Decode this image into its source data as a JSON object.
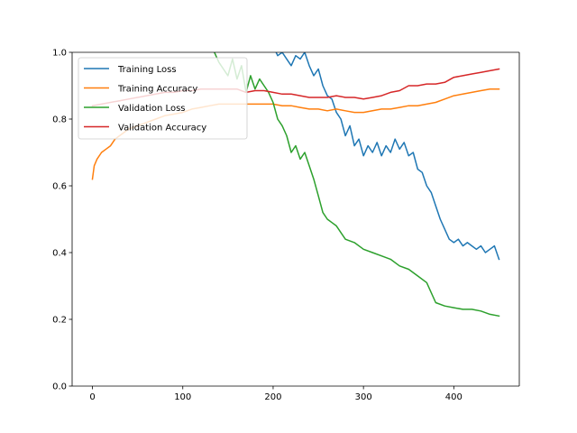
{
  "chart_data": {
    "type": "line",
    "title": "",
    "xlabel": "",
    "ylabel": "",
    "xlim": [
      -22.5,
      472.5
    ],
    "ylim": [
      0.0,
      1.0
    ],
    "x_ticks": [
      0,
      100,
      200,
      300,
      400
    ],
    "y_ticks": [
      0.0,
      0.2,
      0.4,
      0.6,
      0.8,
      1.0
    ],
    "x_tick_labels": [
      "0",
      "100",
      "200",
      "300",
      "400"
    ],
    "y_tick_labels": [
      "0.0",
      "0.2",
      "0.4",
      "0.6",
      "0.8",
      "1.0"
    ],
    "grid": false,
    "legend_position": "top-left",
    "series": [
      {
        "name": "Training Loss",
        "color": "#1f77b4",
        "points": [
          [
            200,
            1.02
          ],
          [
            205,
            0.99
          ],
          [
            210,
            1.0
          ],
          [
            215,
            0.98
          ],
          [
            220,
            0.96
          ],
          [
            225,
            0.99
          ],
          [
            230,
            0.98
          ],
          [
            235,
            1.0
          ],
          [
            240,
            0.96
          ],
          [
            245,
            0.93
          ],
          [
            250,
            0.95
          ],
          [
            255,
            0.9
          ],
          [
            260,
            0.87
          ],
          [
            265,
            0.86
          ],
          [
            270,
            0.82
          ],
          [
            275,
            0.8
          ],
          [
            280,
            0.75
          ],
          [
            285,
            0.78
          ],
          [
            290,
            0.72
          ],
          [
            295,
            0.74
          ],
          [
            300,
            0.69
          ],
          [
            305,
            0.72
          ],
          [
            310,
            0.7
          ],
          [
            315,
            0.73
          ],
          [
            320,
            0.69
          ],
          [
            325,
            0.72
          ],
          [
            330,
            0.7
          ],
          [
            335,
            0.74
          ],
          [
            340,
            0.71
          ],
          [
            345,
            0.73
          ],
          [
            350,
            0.69
          ],
          [
            355,
            0.7
          ],
          [
            360,
            0.65
          ],
          [
            365,
            0.64
          ],
          [
            370,
            0.6
          ],
          [
            375,
            0.58
          ],
          [
            380,
            0.54
          ],
          [
            385,
            0.5
          ],
          [
            390,
            0.47
          ],
          [
            395,
            0.44
          ],
          [
            400,
            0.43
          ],
          [
            405,
            0.44
          ],
          [
            410,
            0.42
          ],
          [
            415,
            0.43
          ],
          [
            420,
            0.42
          ],
          [
            425,
            0.41
          ],
          [
            430,
            0.42
          ],
          [
            435,
            0.4
          ],
          [
            440,
            0.41
          ],
          [
            445,
            0.42
          ],
          [
            450,
            0.38
          ]
        ]
      },
      {
        "name": "Training Accuracy",
        "color": "#ff7f0e",
        "points": [
          [
            0,
            0.62
          ],
          [
            2,
            0.66
          ],
          [
            5,
            0.68
          ],
          [
            10,
            0.7
          ],
          [
            15,
            0.71
          ],
          [
            20,
            0.72
          ],
          [
            25,
            0.74
          ],
          [
            30,
            0.75
          ],
          [
            40,
            0.77
          ],
          [
            50,
            0.78
          ],
          [
            60,
            0.79
          ],
          [
            70,
            0.8
          ],
          [
            80,
            0.81
          ],
          [
            90,
            0.815
          ],
          [
            100,
            0.82
          ],
          [
            110,
            0.83
          ],
          [
            120,
            0.835
          ],
          [
            130,
            0.84
          ],
          [
            140,
            0.845
          ],
          [
            150,
            0.845
          ],
          [
            160,
            0.845
          ],
          [
            170,
            0.845
          ],
          [
            180,
            0.845
          ],
          [
            190,
            0.845
          ],
          [
            200,
            0.845
          ],
          [
            210,
            0.84
          ],
          [
            220,
            0.84
          ],
          [
            230,
            0.835
          ],
          [
            240,
            0.83
          ],
          [
            250,
            0.83
          ],
          [
            260,
            0.825
          ],
          [
            270,
            0.83
          ],
          [
            280,
            0.825
          ],
          [
            290,
            0.82
          ],
          [
            300,
            0.82
          ],
          [
            310,
            0.825
          ],
          [
            320,
            0.83
          ],
          [
            330,
            0.83
          ],
          [
            340,
            0.835
          ],
          [
            350,
            0.84
          ],
          [
            360,
            0.84
          ],
          [
            370,
            0.845
          ],
          [
            380,
            0.85
          ],
          [
            390,
            0.86
          ],
          [
            400,
            0.87
          ],
          [
            410,
            0.875
          ],
          [
            420,
            0.88
          ],
          [
            430,
            0.885
          ],
          [
            440,
            0.89
          ],
          [
            450,
            0.89
          ]
        ]
      },
      {
        "name": "Validation Loss",
        "color": "#2ca02c",
        "points": [
          [
            135,
            1.0
          ],
          [
            140,
            0.97
          ],
          [
            145,
            0.95
          ],
          [
            150,
            0.93
          ],
          [
            155,
            0.98
          ],
          [
            160,
            0.92
          ],
          [
            165,
            0.96
          ],
          [
            170,
            0.88
          ],
          [
            175,
            0.93
          ],
          [
            180,
            0.89
          ],
          [
            185,
            0.92
          ],
          [
            190,
            0.9
          ],
          [
            195,
            0.88
          ],
          [
            200,
            0.85
          ],
          [
            205,
            0.8
          ],
          [
            210,
            0.78
          ],
          [
            215,
            0.75
          ],
          [
            220,
            0.7
          ],
          [
            225,
            0.72
          ],
          [
            230,
            0.68
          ],
          [
            235,
            0.7
          ],
          [
            240,
            0.66
          ],
          [
            245,
            0.62
          ],
          [
            250,
            0.57
          ],
          [
            255,
            0.52
          ],
          [
            260,
            0.5
          ],
          [
            265,
            0.49
          ],
          [
            270,
            0.48
          ],
          [
            275,
            0.46
          ],
          [
            280,
            0.44
          ],
          [
            290,
            0.43
          ],
          [
            300,
            0.41
          ],
          [
            310,
            0.4
          ],
          [
            320,
            0.39
          ],
          [
            330,
            0.38
          ],
          [
            340,
            0.36
          ],
          [
            350,
            0.35
          ],
          [
            360,
            0.33
          ],
          [
            370,
            0.31
          ],
          [
            380,
            0.25
          ],
          [
            390,
            0.24
          ],
          [
            400,
            0.235
          ],
          [
            410,
            0.23
          ],
          [
            420,
            0.23
          ],
          [
            430,
            0.225
          ],
          [
            440,
            0.215
          ],
          [
            450,
            0.21
          ]
        ]
      },
      {
        "name": "Validation Accuracy",
        "color": "#d62728",
        "points": [
          [
            0,
            0.84
          ],
          [
            10,
            0.845
          ],
          [
            20,
            0.85
          ],
          [
            30,
            0.855
          ],
          [
            40,
            0.86
          ],
          [
            50,
            0.865
          ],
          [
            60,
            0.87
          ],
          [
            70,
            0.875
          ],
          [
            80,
            0.88
          ],
          [
            90,
            0.88
          ],
          [
            100,
            0.885
          ],
          [
            110,
            0.885
          ],
          [
            120,
            0.89
          ],
          [
            130,
            0.89
          ],
          [
            140,
            0.89
          ],
          [
            150,
            0.89
          ],
          [
            160,
            0.89
          ],
          [
            170,
            0.88
          ],
          [
            180,
            0.885
          ],
          [
            190,
            0.885
          ],
          [
            200,
            0.88
          ],
          [
            210,
            0.875
          ],
          [
            220,
            0.875
          ],
          [
            230,
            0.87
          ],
          [
            240,
            0.865
          ],
          [
            250,
            0.865
          ],
          [
            260,
            0.865
          ],
          [
            270,
            0.87
          ],
          [
            280,
            0.865
          ],
          [
            290,
            0.865
          ],
          [
            300,
            0.86
          ],
          [
            310,
            0.865
          ],
          [
            320,
            0.87
          ],
          [
            330,
            0.88
          ],
          [
            340,
            0.885
          ],
          [
            350,
            0.9
          ],
          [
            360,
            0.9
          ],
          [
            370,
            0.905
          ],
          [
            380,
            0.905
          ],
          [
            390,
            0.91
          ],
          [
            400,
            0.925
          ],
          [
            410,
            0.93
          ],
          [
            420,
            0.935
          ],
          [
            430,
            0.94
          ],
          [
            440,
            0.945
          ],
          [
            450,
            0.95
          ]
        ]
      }
    ]
  }
}
